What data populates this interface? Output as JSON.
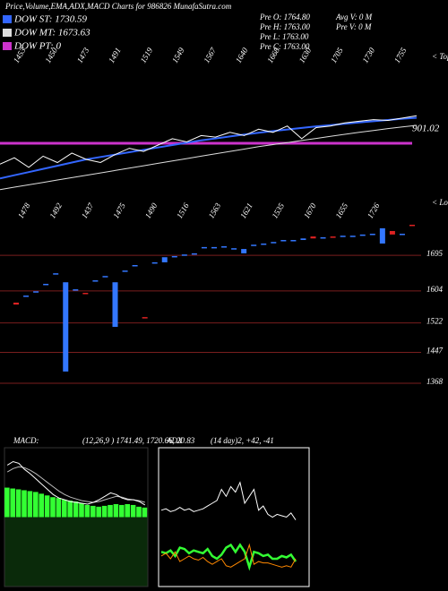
{
  "header": {
    "title": "Price,Volume,EMA,ADX,MACD Charts for 986826  MunafaSutra.com",
    "stats_left": [
      "Pre  O: 1764.80",
      "Pre  H: 1763.00",
      "Pre  L: 1763.00",
      "Pre  C: 1763.00"
    ],
    "stats_right": [
      "Avg V: 0  M",
      "Pre  V: 0  M"
    ]
  },
  "chart_data": [
    {
      "type": "line",
      "ylim": [
        1225,
        2155
      ],
      "price_color": "#ffffff",
      "price": [
        1460,
        1500,
        1440,
        1510,
        1470,
        1530,
        1490,
        1470,
        1520,
        1560,
        1540,
        1580,
        1620,
        1600,
        1640,
        1630,
        1660,
        1640,
        1680,
        1660,
        1700,
        1620,
        1690,
        1700,
        1720,
        1730,
        1740,
        1735,
        1750,
        1765
      ],
      "series": [
        {
          "name": "DOW ST: 1730.59",
          "color": "#3366ff",
          "values": [
            1370,
            1390,
            1410,
            1430,
            1450,
            1470,
            1490,
            1505,
            1520,
            1535,
            1550,
            1565,
            1580,
            1595,
            1610,
            1622,
            1634,
            1646,
            1658,
            1668,
            1678,
            1688,
            1698,
            1706,
            1714,
            1722,
            1730,
            1738,
            1746,
            1752
          ]
        },
        {
          "name": "DOW MT: 1673.63",
          "color": "#dddddd",
          "values": [
            1300,
            1315,
            1330,
            1345,
            1360,
            1375,
            1390,
            1405,
            1420,
            1435,
            1450,
            1465,
            1480,
            1495,
            1510,
            1525,
            1540,
            1555,
            1570,
            1583,
            1596,
            1609,
            1622,
            1635,
            1648,
            1660,
            1672,
            1684,
            1694,
            1704
          ]
        },
        {
          "name": "DOW PT: 0",
          "color": "#cc33cc"
        }
      ],
      "level_label": "901.02",
      "top_label": "< Topo",
      "bottom_label": "< Lowro",
      "high_labels": [
        "1453",
        "1450",
        "1473",
        "1491",
        "1519",
        "1549",
        "1567",
        "1640",
        "1668",
        "1630",
        "1705",
        "1730",
        "1755"
      ],
      "low_labels": [
        "1478",
        "1492",
        "1437",
        "1475",
        "1490",
        "1516",
        "1563",
        "1621",
        "1535",
        "1670",
        "1655",
        "1726"
      ]
    },
    {
      "type": "candlestick",
      "ylim": [
        1249,
        1821
      ],
      "yticks": [
        1695,
        1604,
        1522,
        1447,
        1368
      ],
      "up_color": "#3377ff",
      "down_color": "#dd2222",
      "grid_color": "#7a1e1e",
      "open": [
        1574,
        1590,
        1600,
        1619,
        1646,
        1398,
        1605,
        1599,
        1628,
        1639,
        1512,
        1653,
        1667,
        1537,
        1674,
        1677,
        1690,
        1694,
        1697,
        1713,
        1713,
        1715,
        1710,
        1700,
        1719,
        1722,
        1726,
        1731,
        1731,
        1734,
        1743,
        1738,
        1743,
        1742,
        1742,
        1745,
        1747,
        1725,
        1757,
        1747,
        1773
      ],
      "close": [
        1569,
        1592,
        1603,
        1622,
        1649,
        1626,
        1608,
        1596,
        1631,
        1642,
        1626,
        1656,
        1670,
        1535,
        1677,
        1690,
        1693,
        1697,
        1700,
        1716,
        1716,
        1718,
        1713,
        1711,
        1722,
        1725,
        1729,
        1734,
        1734,
        1738,
        1738,
        1741,
        1740,
        1745,
        1745,
        1748,
        1750,
        1764,
        1748,
        1750,
        1770
      ]
    },
    {
      "type": "macd",
      "title": "MACD:",
      "subtitle": "(12,26,9 ) 1741.49, 1720.66, 20.83",
      "ylim": [
        -80,
        80
      ],
      "bar_color": "#33ff33",
      "line_color": "#ffffff",
      "signal_color": "#bbbbbb",
      "histogram": [
        34,
        33,
        32,
        31,
        30,
        29,
        27,
        25,
        23,
        22,
        20,
        19,
        18,
        16,
        14,
        13,
        12,
        13,
        14,
        15,
        14,
        15,
        14,
        12,
        11
      ],
      "macd": [
        60,
        64,
        62,
        55,
        50,
        44,
        38,
        32,
        26,
        22,
        20,
        18,
        17,
        16,
        15,
        17,
        20,
        24,
        28,
        26,
        22,
        20,
        20,
        18,
        14
      ],
      "signal": [
        52,
        56,
        58,
        57,
        54,
        50,
        45,
        40,
        35,
        30,
        26,
        23,
        21,
        19,
        18,
        17,
        18,
        20,
        22,
        24,
        23,
        21,
        20,
        19,
        17
      ]
    },
    {
      "type": "adx",
      "title": "ADX",
      "subtitle": "(14 day)2, +42, -41",
      "ylim": [
        0,
        100
      ],
      "series": [
        {
          "color": "#ffffff",
          "values": [
            55,
            56,
            54,
            55,
            57,
            55,
            56,
            54,
            55,
            56,
            58,
            60,
            62,
            70,
            65,
            72,
            68,
            75,
            60,
            65,
            70,
            55,
            58,
            52,
            50,
            52,
            51,
            50,
            53,
            48
          ]
        },
        {
          "color": "#33ff33",
          "values": [
            25,
            24,
            26,
            22,
            28,
            27,
            24,
            26,
            25,
            24,
            27,
            22,
            20,
            23,
            28,
            30,
            25,
            30,
            25,
            14,
            25,
            24,
            22,
            23,
            20,
            20,
            22,
            21,
            23,
            18
          ]
        },
        {
          "color": "#ff8800",
          "values": [
            22,
            24,
            20,
            25,
            18,
            20,
            22,
            20,
            19,
            21,
            18,
            16,
            18,
            20,
            15,
            14,
            16,
            18,
            20,
            30,
            16,
            18,
            17,
            17,
            16,
            15,
            14,
            15,
            14,
            20
          ]
        }
      ]
    }
  ]
}
